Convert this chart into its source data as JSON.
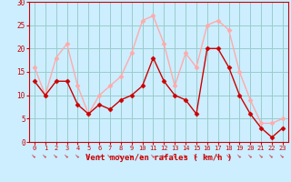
{
  "x": [
    0,
    1,
    2,
    3,
    4,
    5,
    6,
    7,
    8,
    9,
    10,
    11,
    12,
    13,
    14,
    15,
    16,
    17,
    18,
    19,
    20,
    21,
    22,
    23
  ],
  "wind_avg": [
    13,
    10,
    13,
    13,
    8,
    6,
    8,
    7,
    9,
    10,
    12,
    18,
    13,
    10,
    9,
    6,
    20,
    20,
    16,
    10,
    6,
    3,
    1,
    3
  ],
  "wind_gust": [
    16,
    10,
    18,
    21,
    12,
    6,
    10,
    12,
    14,
    19,
    26,
    27,
    21,
    12,
    19,
    16,
    25,
    26,
    24,
    15,
    9,
    4,
    4,
    5
  ],
  "wind_avg_color": "#cc0000",
  "wind_gust_color": "#ffaaaa",
  "bg_color": "#cceeff",
  "grid_color": "#99cccc",
  "axis_color": "#cc0000",
  "text_color": "#cc0000",
  "xlabel": "Vent moyen/en rafales ( km/h )",
  "ylim": [
    0,
    30
  ],
  "xlim": [
    -0.5,
    23.5
  ],
  "yticks": [
    0,
    5,
    10,
    15,
    20,
    25,
    30
  ],
  "xticks": [
    0,
    1,
    2,
    3,
    4,
    5,
    6,
    7,
    8,
    9,
    10,
    11,
    12,
    13,
    14,
    15,
    16,
    17,
    18,
    19,
    20,
    21,
    22,
    23
  ]
}
